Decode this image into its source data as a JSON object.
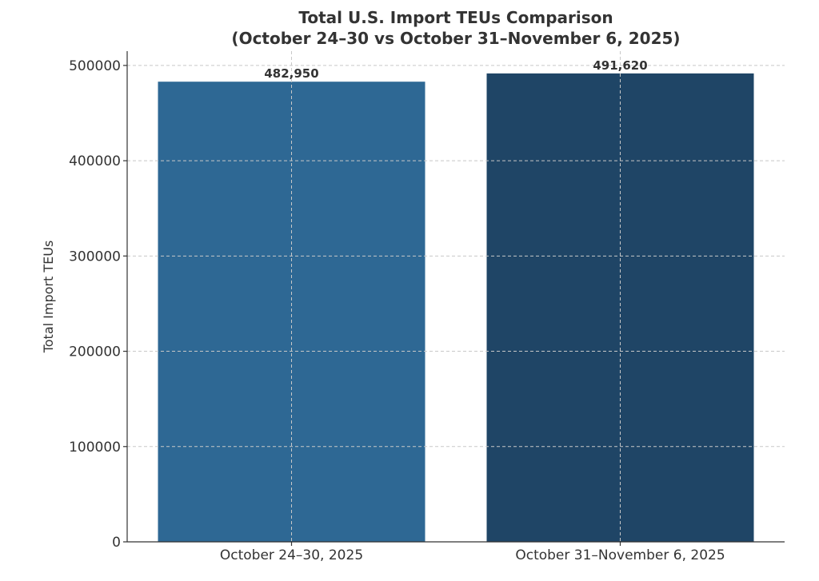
{
  "chart_data": {
    "type": "bar",
    "title_lines": [
      "Total U.S. Import TEUs Comparison",
      "(October 24–30 vs October 31–November 6, 2025)"
    ],
    "xlabel": "",
    "ylabel": "Total Import TEUs",
    "categories": [
      "October 24–30, 2025",
      "October 31–November 6, 2025"
    ],
    "values": [
      482950,
      491620
    ],
    "value_labels": [
      "482,950",
      "491,620"
    ],
    "colors": [
      "#2e6894",
      "#1f4566"
    ],
    "ylim": [
      0,
      515000
    ],
    "yticks": [
      0,
      100000,
      200000,
      300000,
      400000,
      500000
    ],
    "ytick_labels": [
      "0",
      "100000",
      "200000",
      "300000",
      "400000",
      "500000"
    ],
    "grid": true,
    "grid_style": "dashed",
    "legend": "none"
  }
}
